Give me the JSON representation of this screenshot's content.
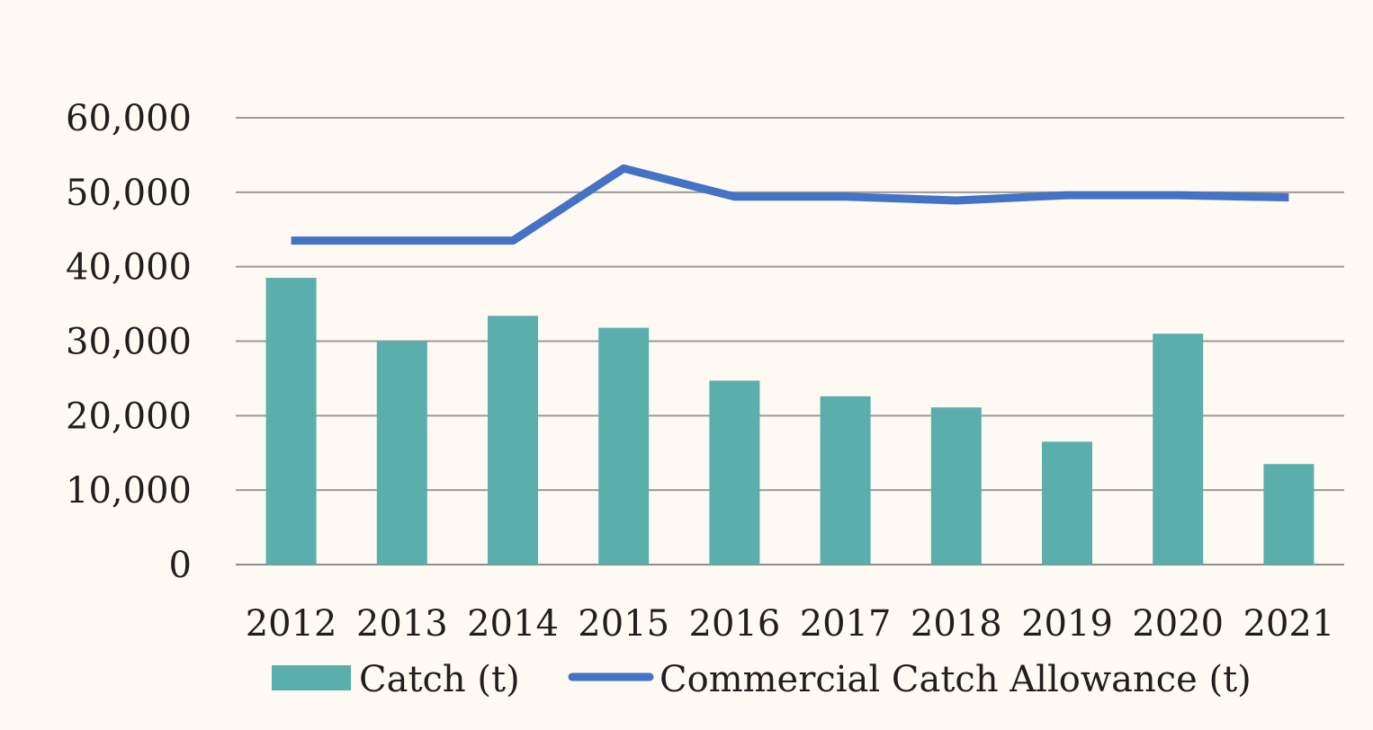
{
  "chart_data": {
    "type": "bar",
    "categories": [
      "2012",
      "2013",
      "2014",
      "2015",
      "2016",
      "2017",
      "2018",
      "2019",
      "2020",
      "2021"
    ],
    "series": [
      {
        "name": "Catch (t)",
        "type": "bar",
        "color": "#5aaeac",
        "values": [
          38500,
          30000,
          33400,
          31800,
          24700,
          22600,
          21100,
          16500,
          31000,
          13500
        ]
      },
      {
        "name": "Commercial Catch Allowance (t)",
        "type": "line",
        "color": "#4472c4",
        "values": [
          43500,
          43500,
          43500,
          53200,
          49400,
          49400,
          48900,
          49600,
          49600,
          49300
        ]
      }
    ],
    "yticks": [
      "0",
      "10,000",
      "20,000",
      "30,000",
      "40,000",
      "50,000",
      "60,000"
    ],
    "ylim": [
      0,
      60000
    ],
    "grid": true,
    "legend_position": "bottom"
  }
}
